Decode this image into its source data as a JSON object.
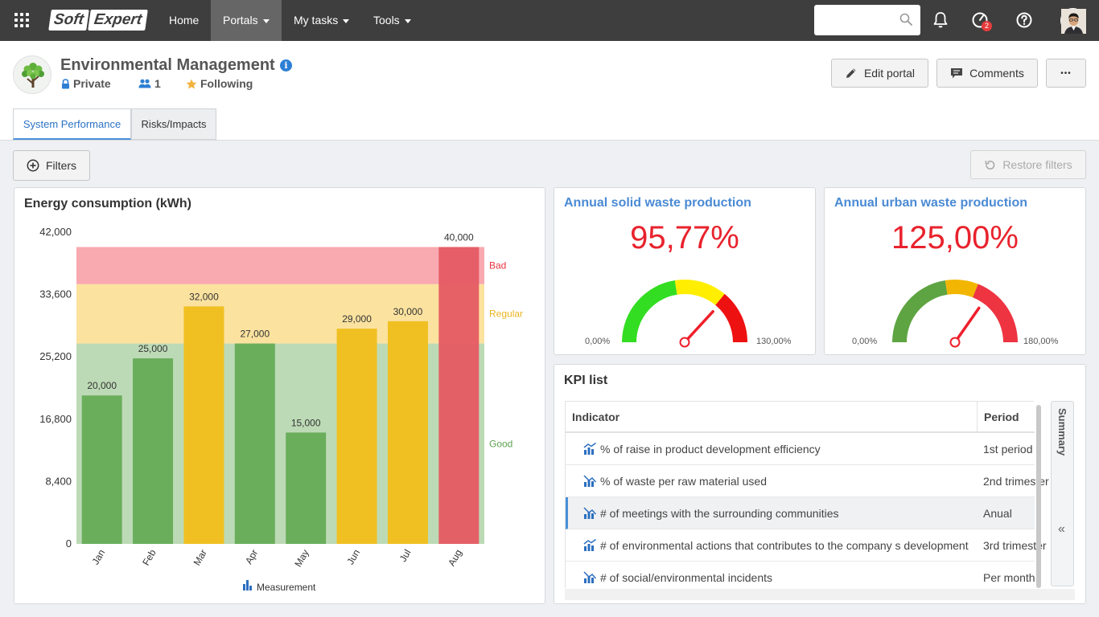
{
  "topbar": {
    "logo_part1": "Soft",
    "logo_part2": "Expert",
    "nav": [
      {
        "label": "Home"
      },
      {
        "label": "Portals"
      },
      {
        "label": "My tasks"
      },
      {
        "label": "Tools"
      }
    ],
    "search_placeholder": "",
    "notification_badge": "2"
  },
  "portal": {
    "title": "Environmental Management",
    "info_glyph": "i",
    "privacy": "Private",
    "members": "1",
    "following": "Following",
    "edit_label": "Edit portal",
    "comments_label": "Comments",
    "more_label": "•••",
    "tabs": [
      {
        "label": "System Performance"
      },
      {
        "label": "Risks/Impacts"
      }
    ]
  },
  "toolbar": {
    "filters_label": "Filters",
    "restore_label": "Restore filters"
  },
  "energy_panel": {
    "title": "Energy consumption (kWh)",
    "legend_label": "Measurement"
  },
  "chart_data": {
    "type": "bar",
    "title": "Energy consumption (kWh)",
    "categories": [
      "Jan",
      "Feb",
      "Mar",
      "Apr",
      "May",
      "Jun",
      "Jul",
      "Aug"
    ],
    "values": [
      20000,
      25000,
      32000,
      27000,
      15000,
      29000,
      30000,
      40000
    ],
    "value_labels": [
      "20,000",
      "25,000",
      "32,000",
      "27,000",
      "15,000",
      "29,000",
      "30,000",
      "40,000"
    ],
    "bar_status": [
      "good",
      "good",
      "regular",
      "good",
      "good",
      "regular",
      "regular",
      "bad"
    ],
    "ylim": [
      0,
      42000
    ],
    "yticks": [
      0,
      8400,
      16800,
      25200,
      33600,
      42000
    ],
    "ytick_labels": [
      "0",
      "8,400",
      "16,800",
      "25,200",
      "33,600",
      "42,000"
    ],
    "bands": [
      {
        "label": "Good",
        "from": 0,
        "to": 27000,
        "color": "#bddab6"
      },
      {
        "label": "Regular",
        "from": 27000,
        "to": 35000,
        "color": "#fbe29f"
      },
      {
        "label": "Bad",
        "from": 35000,
        "to": 40000,
        "color": "#f9a9b0"
      }
    ],
    "band_label_colors": {
      "Good": "#5ea34f",
      "Regular": "#eab41d",
      "Bad": "#e8343e"
    },
    "bar_colors": {
      "good": "#6aae5c",
      "regular": "#f0c022",
      "bad": "#e55a63"
    },
    "legend": [
      "Measurement"
    ]
  },
  "gauges": [
    {
      "title": "Annual solid waste production",
      "value_text": "95,77%",
      "value": 95.77,
      "min_label": "0,00%",
      "max_label": "130,00%",
      "max": 130,
      "segments": [
        {
          "to": 0.45,
          "color": "#33dd22"
        },
        {
          "to": 0.72,
          "color": "#ffee00"
        },
        {
          "to": 1.0,
          "color": "#ee1111"
        }
      ]
    },
    {
      "title": "Annual urban waste production",
      "value_text": "125,00%",
      "value": 125,
      "min_label": "0,00%",
      "max_label": "180,00%",
      "max": 180,
      "segments": [
        {
          "to": 0.45,
          "color": "#5ea442"
        },
        {
          "to": 0.62,
          "color": "#f2b600"
        },
        {
          "to": 1.0,
          "color": "#ee3341"
        }
      ]
    }
  ],
  "kpi": {
    "title": "KPI list",
    "col_indicator": "Indicator",
    "col_period": "Period",
    "summary_label": "Summary",
    "collapse_glyph": "«",
    "rows": [
      {
        "indicator": "% of raise in product development efficiency",
        "period": "1st period"
      },
      {
        "indicator": "% of waste per raw material used",
        "period": "2nd trimester"
      },
      {
        "indicator": "# of meetings with the surrounding communities",
        "period": "Anual"
      },
      {
        "indicator": "# of environmental actions that contributes to the company s development",
        "period": "3rd trimester"
      },
      {
        "indicator": "# of social/environmental incidents",
        "period": "Per month"
      }
    ]
  }
}
